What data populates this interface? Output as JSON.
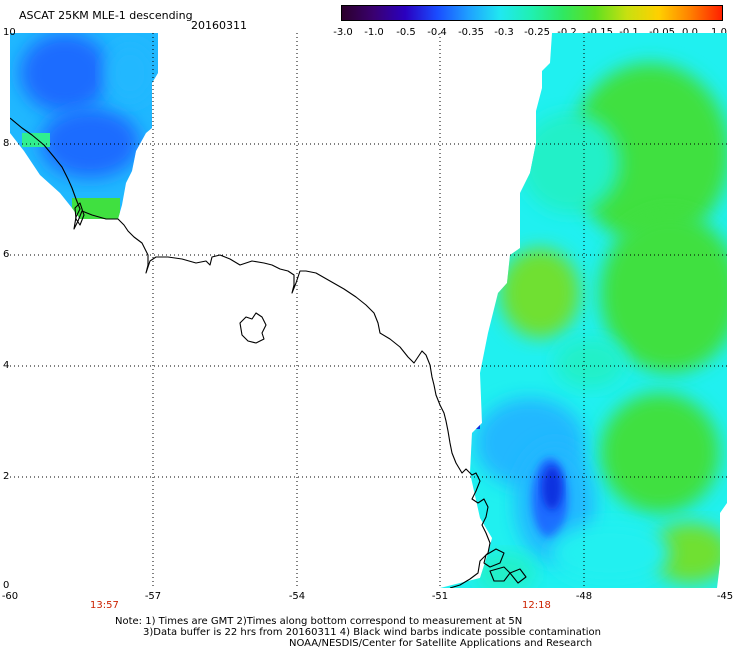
{
  "header": {
    "title": "ASCAT 25KM MLE-1 descending",
    "date": "20160311"
  },
  "colorbar": {
    "stops": [
      "#2b002b",
      "#3a0070",
      "#2a00c0",
      "#1a4cff",
      "#1fa0ff",
      "#20e8f0",
      "#20f0b0",
      "#30e860",
      "#60e020",
      "#c8e010",
      "#ffd000",
      "#ff8000",
      "#ff2000"
    ],
    "labels": [
      "-3.0",
      "-1.0",
      "-0.5",
      "-0.4",
      "-0.35",
      "-0.3",
      "-0.25",
      "-0.2",
      "-0.15",
      "-0.1",
      "-0.05",
      "0.0",
      "1.0"
    ]
  },
  "axes": {
    "lon_ticks": [
      "-60",
      "-57",
      "-54",
      "-51",
      "-48",
      "-45"
    ],
    "lat_ticks": [
      "10",
      "8",
      "6",
      "4",
      "2",
      "0"
    ]
  },
  "times": [
    "13:57",
    "12:18"
  ],
  "notes": [
    "Note: 1) Times are GMT 2)Times along bottom correspond to measurement at 5N",
    "3)Data buffer is 22 hrs from 20160311 4) Black wind barbs indicate possible contamination",
    "NOAA/NESDIS/Center for Satellite Applications and Research"
  ],
  "colors": {
    "deep_blue": "#1030e0",
    "blue": "#1a6cff",
    "sky": "#20b8ff",
    "cyan": "#20f0f0",
    "aqua": "#20f0c8",
    "mint": "#30ee90",
    "green": "#40e040",
    "lime": "#70e030"
  }
}
